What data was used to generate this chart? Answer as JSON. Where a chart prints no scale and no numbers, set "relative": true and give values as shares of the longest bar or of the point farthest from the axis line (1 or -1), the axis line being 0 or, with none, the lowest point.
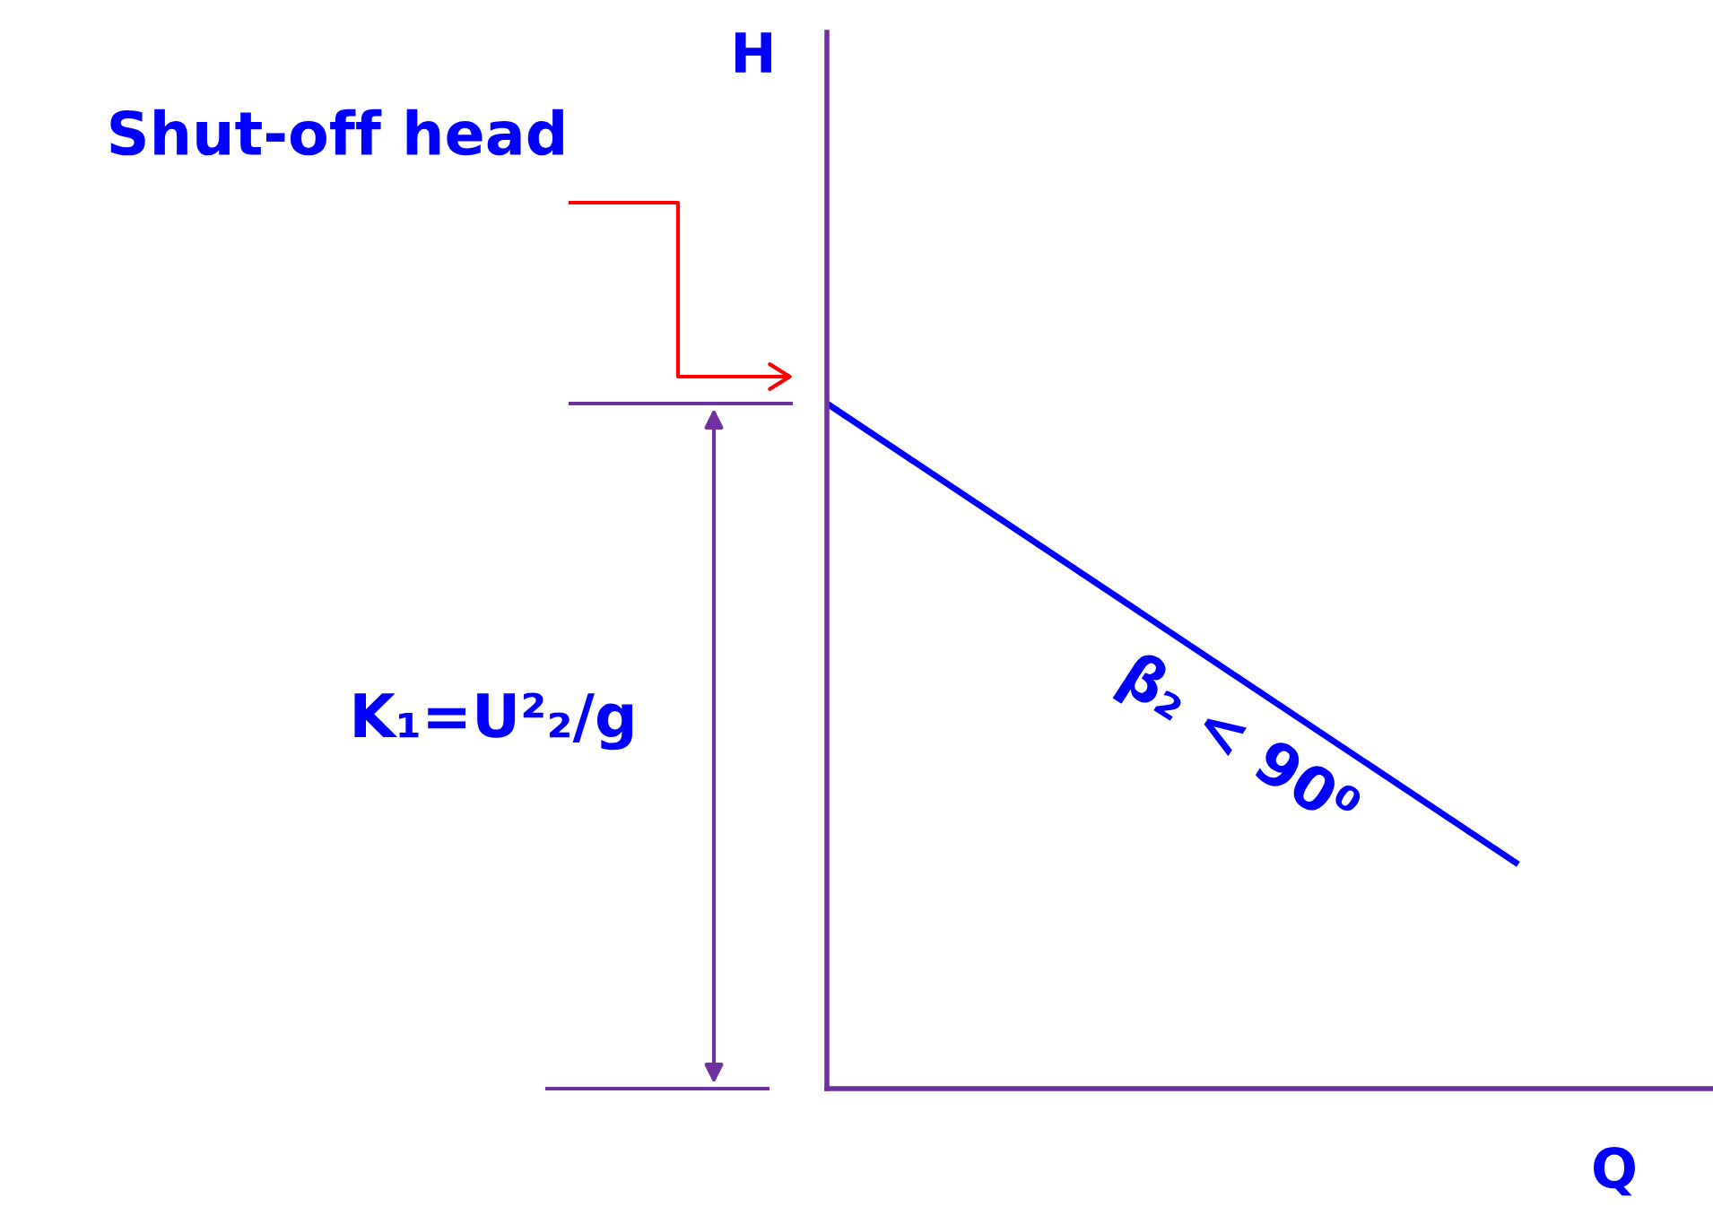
{
  "chart_data": {
    "type": "line",
    "relative": true,
    "xlabel": "Q",
    "categories": [
      null,
      null
    ],
    "series": [
      {
        "color": "#0000ff",
        "values": [
          1,
          0.33
        ]
      }
    ],
    "annotations": [
      "H",
      "Shut-off head",
      "K₁=U²₂/g",
      "β₂ < 90⁰"
    ],
    "marker": "none",
    "line_style": "solid",
    "tick_labels": false
  }
}
